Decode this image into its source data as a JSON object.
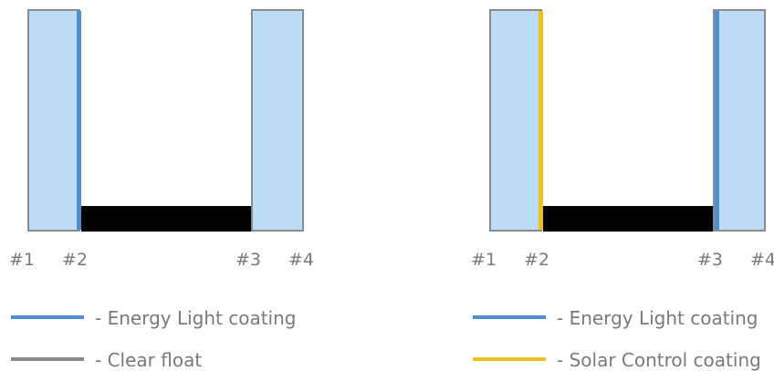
{
  "colors": {
    "glass": "#bddcf8",
    "frame": "#8a8a8a",
    "energy_light": "#4e8fd0",
    "solar_control": "#f2c01e",
    "clear_float": "#8a8a8a",
    "spacer": "#000000"
  },
  "left": {
    "surfaces": [
      "#1",
      "#2",
      "#3",
      "#4"
    ],
    "legend": [
      {
        "label": "- Energy Light coating"
      },
      {
        "label": "- Clear float"
      }
    ]
  },
  "right": {
    "surfaces": [
      "#1",
      "#2",
      "#3",
      "#4"
    ],
    "legend": [
      {
        "label": "- Energy Light coating"
      },
      {
        "label": "- Solar Control coating"
      }
    ]
  }
}
